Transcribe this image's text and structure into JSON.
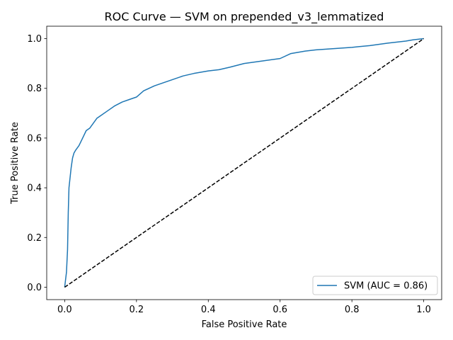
{
  "chart_data": {
    "type": "line",
    "title": "ROC Curve — SVM on prepended_v3_lemmatized",
    "xlabel": "False Positive Rate",
    "ylabel": "True Positive Rate",
    "xlim": [
      -0.05,
      1.05
    ],
    "ylim": [
      -0.05,
      1.05
    ],
    "xticks": [
      "0.0",
      "0.2",
      "0.4",
      "0.6",
      "0.8",
      "1.0"
    ],
    "yticks": [
      "0.0",
      "0.2",
      "0.4",
      "0.6",
      "0.8",
      "1.0"
    ],
    "grid": false,
    "legend_position": "lower right",
    "series": [
      {
        "name": "SVM (AUC = 0.86)",
        "color": "#1f77b4",
        "style": "solid",
        "x": [
          0.0,
          0.005,
          0.008,
          0.01,
          0.012,
          0.015,
          0.018,
          0.022,
          0.026,
          0.03,
          0.035,
          0.04,
          0.05,
          0.06,
          0.07,
          0.08,
          0.09,
          0.1,
          0.12,
          0.14,
          0.16,
          0.18,
          0.2,
          0.22,
          0.25,
          0.28,
          0.3,
          0.33,
          0.36,
          0.4,
          0.43,
          0.46,
          0.5,
          0.55,
          0.6,
          0.63,
          0.67,
          0.7,
          0.75,
          0.8,
          0.85,
          0.9,
          0.95,
          0.97,
          1.0
        ],
        "y": [
          0.0,
          0.06,
          0.15,
          0.3,
          0.4,
          0.44,
          0.48,
          0.52,
          0.54,
          0.55,
          0.56,
          0.57,
          0.6,
          0.63,
          0.64,
          0.66,
          0.68,
          0.69,
          0.71,
          0.73,
          0.745,
          0.755,
          0.765,
          0.79,
          0.81,
          0.825,
          0.835,
          0.85,
          0.86,
          0.87,
          0.875,
          0.885,
          0.9,
          0.91,
          0.92,
          0.94,
          0.95,
          0.955,
          0.96,
          0.965,
          0.972,
          0.982,
          0.99,
          0.995,
          1.0
        ]
      },
      {
        "name": "",
        "color": "#000000",
        "style": "dashed",
        "x": [
          0.0,
          1.0
        ],
        "y": [
          0.0,
          1.0
        ]
      }
    ]
  }
}
